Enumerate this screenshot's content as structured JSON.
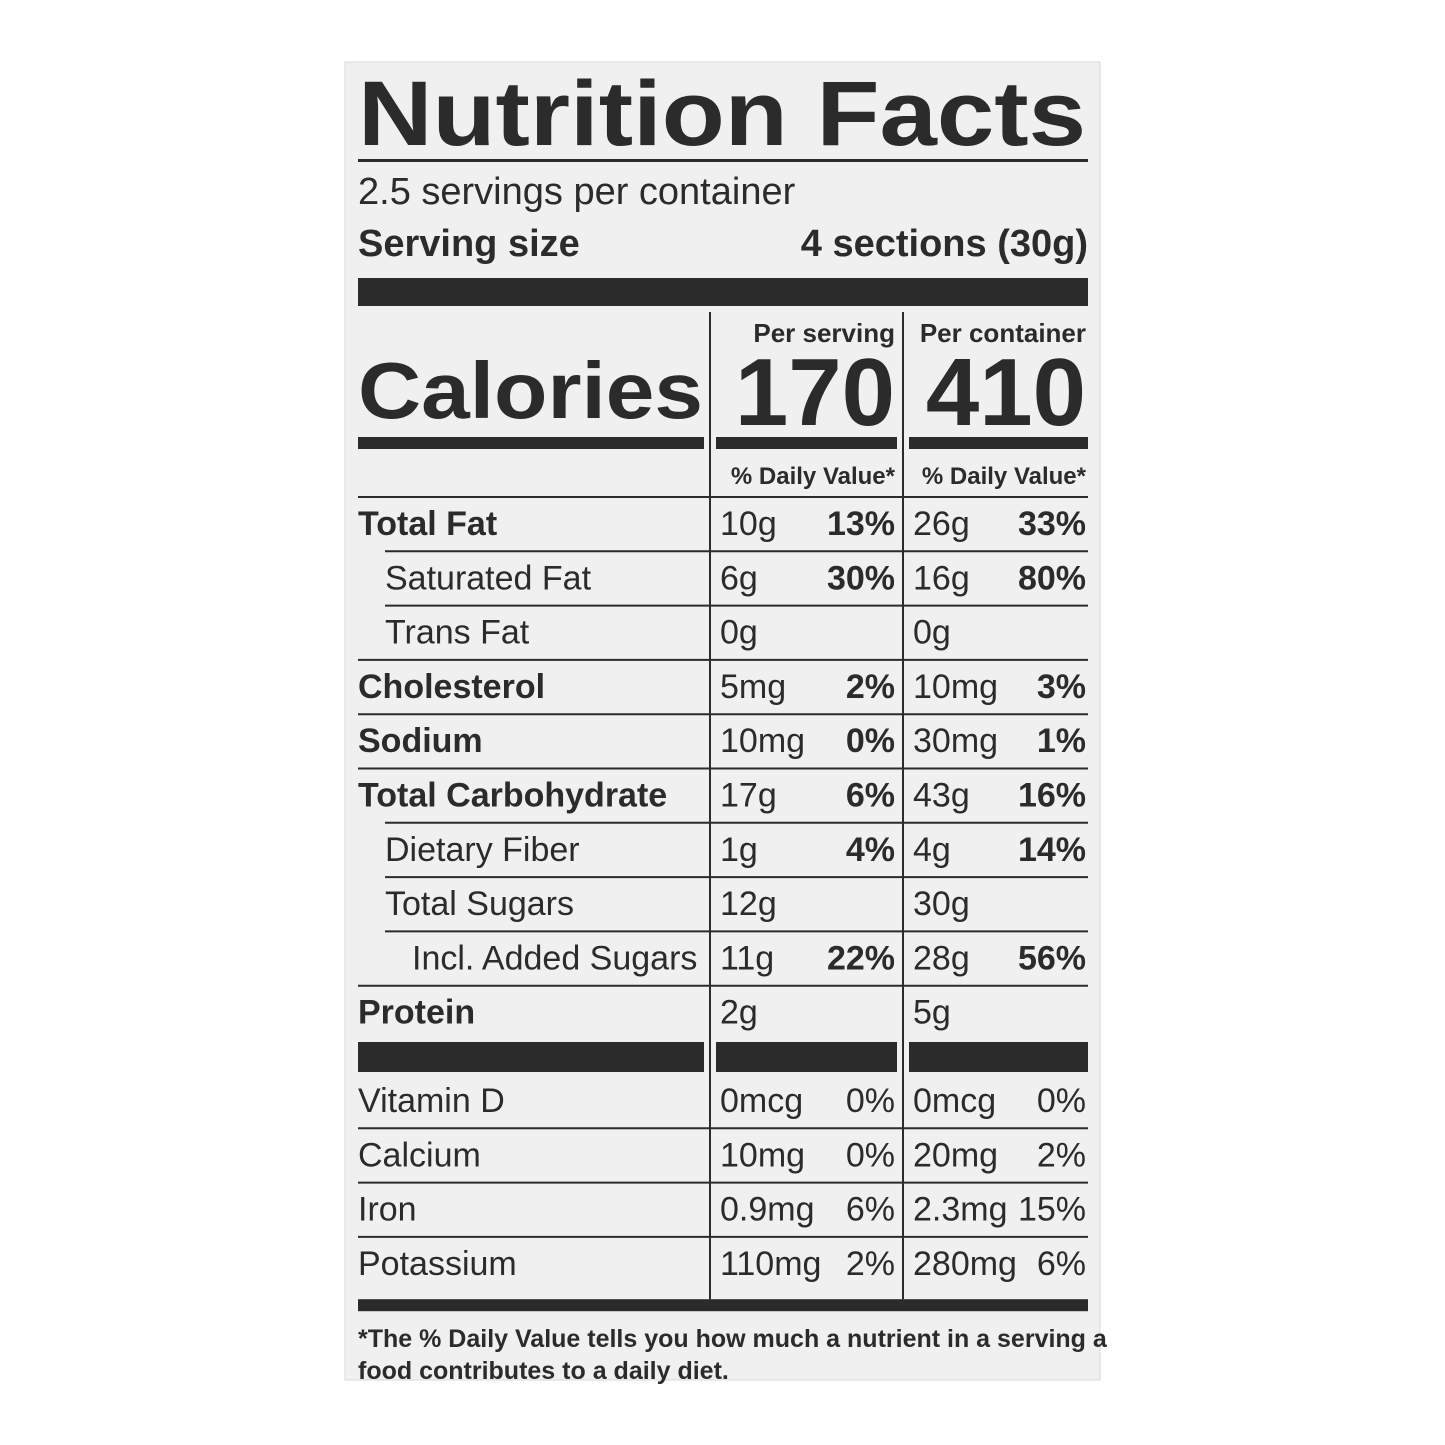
{
  "header": {
    "title": "Nutrition Facts",
    "servings": "2.5 servings per container",
    "serving_size_label": "Serving size",
    "serving_size_value": "4 sections (30g)"
  },
  "calories": {
    "label": "Calories",
    "columns": [
      {
        "heading": "Per serving",
        "value": "170",
        "dv_heading": "% Daily Value*"
      },
      {
        "heading": "Per container",
        "value": "410",
        "dv_heading": "% Daily Value*"
      }
    ]
  },
  "nutrients": [
    {
      "name": "Total Fat",
      "bold": true,
      "indent": 0,
      "cells": [
        [
          "10g",
          "13%"
        ],
        [
          "26g",
          "33%"
        ]
      ]
    },
    {
      "name": "Saturated Fat",
      "bold": false,
      "indent": 1,
      "cells": [
        [
          "6g",
          "30%"
        ],
        [
          "16g",
          "80%"
        ]
      ]
    },
    {
      "name": "Trans Fat",
      "bold": false,
      "indent": 1,
      "cells": [
        [
          "0g",
          null
        ],
        [
          "0g",
          null
        ]
      ]
    },
    {
      "name": "Cholesterol",
      "bold": true,
      "indent": 0,
      "cells": [
        [
          "5mg",
          "2%"
        ],
        [
          "10mg",
          "3%"
        ]
      ]
    },
    {
      "name": "Sodium",
      "bold": true,
      "indent": 0,
      "cells": [
        [
          "10mg",
          "0%"
        ],
        [
          "30mg",
          "1%"
        ]
      ]
    },
    {
      "name": "Total Carbohydrate",
      "bold": true,
      "indent": 0,
      "cells": [
        [
          "17g",
          "6%"
        ],
        [
          "43g",
          "16%"
        ]
      ]
    },
    {
      "name": "Dietary Fiber",
      "bold": false,
      "indent": 1,
      "cells": [
        [
          "1g",
          "4%"
        ],
        [
          "4g",
          "14%"
        ]
      ]
    },
    {
      "name": "Total Sugars",
      "bold": false,
      "indent": 1,
      "cells": [
        [
          "12g",
          null
        ],
        [
          "30g",
          null
        ]
      ]
    },
    {
      "name": "Incl. Added Sugars",
      "bold": false,
      "indent": 2,
      "cells": [
        [
          "11g",
          "22%"
        ],
        [
          "28g",
          "56%"
        ]
      ]
    },
    {
      "name": "Protein",
      "bold": true,
      "indent": 0,
      "cells": [
        [
          "2g",
          null
        ],
        [
          "5g",
          null
        ]
      ]
    }
  ],
  "vitamins": [
    {
      "name": "Vitamin D",
      "cells": [
        [
          "0mcg",
          "0%"
        ],
        [
          "0mcg",
          "0%"
        ]
      ]
    },
    {
      "name": "Calcium",
      "cells": [
        [
          "10mg",
          "0%"
        ],
        [
          "20mg",
          "2%"
        ]
      ]
    },
    {
      "name": "Iron",
      "cells": [
        [
          "0.9mg",
          "6%"
        ],
        [
          "2.3mg",
          "15%"
        ]
      ]
    },
    {
      "name": "Potassium",
      "cells": [
        [
          "110mg",
          "2%"
        ],
        [
          "280mg",
          "6%"
        ]
      ]
    }
  ],
  "footnote": [
    "*The % Daily Value tells you how much a nutrient in a serving a",
    "food contributes to a daily diet."
  ]
}
